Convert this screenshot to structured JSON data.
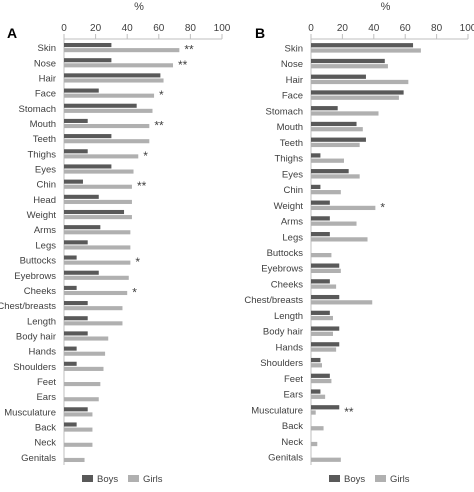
{
  "legend": {
    "boys": "Boys",
    "girls": "Girls"
  },
  "colors": {
    "boys": "#595959",
    "girls": "#b0b0b0",
    "axis": "#bfbfbf",
    "text": "#404040"
  },
  "chart_data": [
    {
      "type": "bar",
      "orientation": "horizontal",
      "panel": "A",
      "xlabel": "%",
      "xlim": [
        0,
        100
      ],
      "xticks": [
        0,
        20,
        40,
        60,
        80,
        100
      ],
      "legend_position": "bottom",
      "categories": [
        "Skin",
        "Nose",
        "Hair",
        "Face",
        "Stomach",
        "Mouth",
        "Teeth",
        "Thighs",
        "Eyes",
        "Chin",
        "Head",
        "Weight",
        "Arms",
        "Legs",
        "Buttocks",
        "Eyebrows",
        "Cheeks",
        "Chest/breasts",
        "Length",
        "Body hair",
        "Hands",
        "Shoulders",
        "Feet",
        "Ears",
        "Musculature",
        "Back",
        "Neck",
        "Genitals"
      ],
      "series": [
        {
          "name": "Boys",
          "values": [
            30,
            30,
            61,
            22,
            46,
            15,
            30,
            15,
            30,
            12,
            22,
            38,
            23,
            15,
            8,
            22,
            8,
            15,
            15,
            15,
            8,
            8,
            0,
            0,
            15,
            8,
            0,
            0
          ]
        },
        {
          "name": "Girls",
          "values": [
            73,
            69,
            63,
            57,
            56,
            54,
            54,
            47,
            44,
            43,
            43,
            43,
            42,
            42,
            42,
            41,
            40,
            37,
            37,
            28,
            26,
            25,
            23,
            22,
            18,
            18,
            18,
            13
          ]
        }
      ],
      "annotations": [
        "**",
        "**",
        "",
        "*",
        "",
        "**",
        "",
        "*",
        "",
        "**",
        "",
        "",
        "",
        "",
        "*",
        "",
        "*",
        "",
        "",
        "",
        "",
        "",
        "",
        "",
        "",
        "",
        "",
        ""
      ]
    },
    {
      "type": "bar",
      "orientation": "horizontal",
      "panel": "B",
      "xlabel": "%",
      "xlim": [
        0,
        100
      ],
      "xticks": [
        0,
        20,
        40,
        60,
        80,
        100
      ],
      "legend_position": "bottom",
      "categories": [
        "Skin",
        "Nose",
        "Hair",
        "Face",
        "Stomach",
        "Mouth",
        "Teeth",
        "Thighs",
        "Eyes",
        "Chin",
        "Weight",
        "Arms",
        "Legs",
        "Buttocks",
        "Eyebrows",
        "Cheeks",
        "Chest/breasts",
        "Length",
        "Body hair",
        "Hands",
        "Shoulders",
        "Feet",
        "Ears",
        "Musculature",
        "Back",
        "Neck",
        "Genitals"
      ],
      "series": [
        {
          "name": "Boys",
          "values": [
            65,
            47,
            35,
            59,
            17,
            29,
            35,
            6,
            24,
            6,
            12,
            12,
            12,
            0,
            18,
            12,
            18,
            12,
            18,
            18,
            6,
            12,
            6,
            18,
            0,
            0,
            0
          ]
        },
        {
          "name": "Girls",
          "values": [
            70,
            49,
            62,
            56,
            43,
            33,
            31,
            21,
            31,
            19,
            41,
            29,
            36,
            13,
            19,
            16,
            39,
            14,
            14,
            16,
            7,
            13,
            9,
            3,
            8,
            4,
            19
          ]
        }
      ],
      "annotations": [
        "",
        "",
        "",
        "",
        "",
        "",
        "",
        "",
        "",
        "",
        "*",
        "",
        "",
        "",
        "",
        "",
        "",
        "",
        "",
        "",
        "",
        "",
        "",
        "**",
        "",
        "",
        ""
      ]
    }
  ]
}
